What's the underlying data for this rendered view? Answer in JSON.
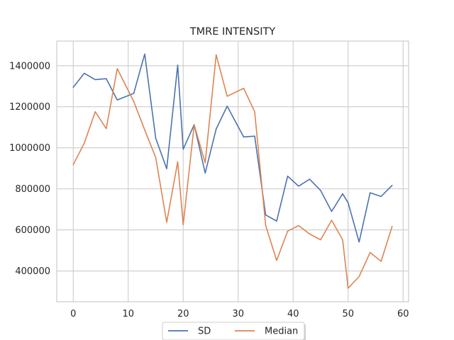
{
  "chart_data": {
    "type": "line",
    "title": "TMRE INTENSITY",
    "xlabel": "",
    "ylabel": "",
    "xlim": [
      -3,
      61
    ],
    "ylim": [
      250000,
      1520000
    ],
    "xticks": [
      0,
      10,
      20,
      30,
      40,
      50,
      60
    ],
    "yticks": [
      400000,
      600000,
      800000,
      1000000,
      1200000,
      1400000
    ],
    "grid": true,
    "legend": {
      "placement": "bottom-center",
      "columns": 2
    },
    "x": [
      0,
      2,
      4,
      6,
      8,
      11,
      13,
      15,
      17,
      19,
      20,
      22,
      24,
      26,
      28,
      31,
      33,
      35,
      37,
      39,
      41,
      43,
      45,
      47,
      49,
      50,
      52,
      54,
      56,
      58
    ],
    "series": [
      {
        "name": "SD",
        "color": "#4c72b0",
        "values": [
          1295000,
          1363000,
          1332000,
          1337000,
          1233000,
          1265000,
          1457000,
          1047000,
          898000,
          1403000,
          993000,
          1113000,
          877000,
          1092000,
          1203000,
          1053000,
          1057000,
          673000,
          643000,
          862000,
          813000,
          847000,
          792000,
          690000,
          776000,
          732000,
          541000,
          781000,
          763000,
          817000
        ]
      },
      {
        "name": "Median",
        "color": "#dd8452",
        "values": [
          918000,
          1022000,
          1176000,
          1093000,
          1386000,
          1226000,
          1087000,
          953000,
          637000,
          932000,
          625000,
          1112000,
          927000,
          1453000,
          1251000,
          1290000,
          1176000,
          622000,
          451000,
          594000,
          621000,
          580000,
          552000,
          647000,
          552000,
          316000,
          373000,
          490000,
          447000,
          617000
        ]
      }
    ]
  }
}
